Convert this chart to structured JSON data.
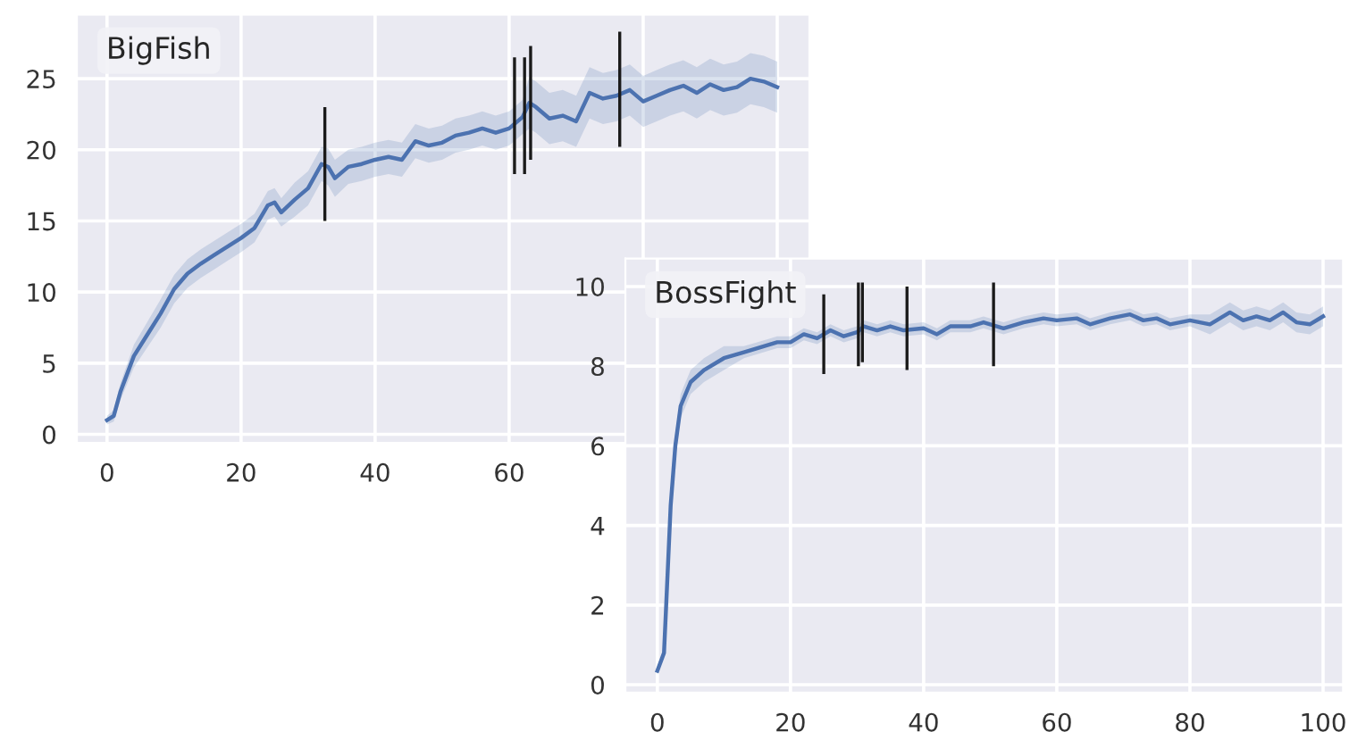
{
  "chart_data": [
    {
      "type": "line",
      "title": "BigFish",
      "grid": true,
      "xlim": [
        -4.5,
        104.8
      ],
      "ylim": [
        -0.6,
        29.5
      ],
      "xticks": [
        0,
        20,
        40,
        60,
        {
          "value": 80,
          "label": null
        },
        {
          "value": 100,
          "label": null
        }
      ],
      "yticks": [
        0,
        5,
        10,
        15,
        20,
        25
      ],
      "series": [
        {
          "color": "#4c72b0",
          "x": [
            0,
            1,
            2,
            4,
            6,
            8,
            10,
            12,
            14,
            16,
            18,
            20,
            22,
            24,
            25,
            26,
            28,
            30,
            32,
            33,
            34,
            36,
            38,
            40,
            42,
            44,
            46,
            48,
            50,
            52,
            54,
            56,
            58,
            60,
            62,
            63,
            64,
            66,
            68,
            70,
            72,
            74,
            76,
            78,
            80,
            82,
            84,
            86,
            88,
            90,
            92,
            94,
            96,
            98,
            100
          ],
          "values": [
            1,
            1.3,
            3,
            5.5,
            7,
            8.5,
            10.2,
            11.3,
            12,
            12.6,
            13.2,
            13.8,
            14.5,
            16.1,
            16.3,
            15.6,
            16.5,
            17.3,
            19,
            18.8,
            18,
            18.8,
            19,
            19.3,
            19.5,
            19.3,
            20.6,
            20.3,
            20.5,
            21,
            21.2,
            21.5,
            21.2,
            21.5,
            22.3,
            23.3,
            23,
            22.2,
            22.4,
            22,
            24,
            23.6,
            23.8,
            24.2,
            23.4,
            23.8,
            24.2,
            24.5,
            24,
            24.6,
            24.2,
            24.4,
            25,
            24.8,
            24.4
          ],
          "lower": [
            0.7,
            0.9,
            2.4,
            4.7,
            6.1,
            7.5,
            9.2,
            10.3,
            11,
            11.6,
            12.2,
            12.8,
            13.5,
            15.1,
            15.3,
            14.6,
            15.3,
            16.1,
            17.8,
            17.5,
            16.7,
            17.6,
            17.8,
            18.1,
            18.3,
            18.1,
            19.4,
            19.1,
            19.3,
            19.8,
            20,
            20.3,
            20,
            20.3,
            21.1,
            21.5,
            21.2,
            20.4,
            20.6,
            20.2,
            22.2,
            21.8,
            22,
            22.4,
            21.6,
            22,
            22.4,
            22.7,
            22.2,
            22.8,
            22.4,
            22.6,
            23.2,
            23,
            22.6
          ],
          "upper": [
            1.3,
            1.7,
            3.6,
            6.3,
            7.9,
            9.5,
            11.2,
            12.3,
            13,
            13.6,
            14.2,
            14.8,
            15.5,
            17.1,
            17.3,
            16.6,
            17.7,
            18.5,
            20.2,
            20.1,
            19.3,
            20,
            20.2,
            20.5,
            20.7,
            20.5,
            21.8,
            21.5,
            21.7,
            22.2,
            22.4,
            22.7,
            22.4,
            22.7,
            23.5,
            25.1,
            24.8,
            24,
            24.2,
            23.8,
            25.8,
            25.4,
            25.6,
            26,
            25.2,
            25.6,
            26,
            26.3,
            25.8,
            26.4,
            26,
            26.2,
            26.8,
            26.6,
            26.2
          ]
        },
        {
          "type": "bar",
          "color": "#1a1a1a",
          "x": [
            32.5,
            60.8,
            62.3,
            63.2,
            76.5
          ],
          "base": [
            15,
            18.3,
            18.3,
            19.3,
            20.2
          ],
          "values": [
            8,
            8.2,
            8.2,
            8,
            8.1
          ]
        }
      ]
    },
    {
      "type": "line",
      "title": "BossFight",
      "grid": true,
      "xlim": [
        -4.8,
        103
      ],
      "ylim": [
        -0.2,
        10.7
      ],
      "xticks": [
        0,
        20,
        40,
        60,
        80,
        100
      ],
      "yticks": [
        0,
        2,
        4,
        6,
        8,
        10
      ],
      "series": [
        {
          "color": "#4c72b0",
          "x": [
            0,
            1,
            1.3,
            2,
            2.7,
            3.5,
            5,
            7,
            10,
            13,
            16,
            18,
            20,
            22,
            24,
            26,
            28,
            30,
            31,
            33,
            35,
            37,
            40,
            42,
            44,
            47,
            49,
            52,
            55,
            58,
            60,
            63,
            65,
            68,
            71,
            73,
            75,
            77,
            80,
            83,
            86,
            88,
            90,
            92,
            94,
            96,
            98,
            100
          ],
          "values": [
            0.35,
            0.8,
            1.9,
            4.5,
            6,
            7,
            7.6,
            7.9,
            8.2,
            8.35,
            8.5,
            8.6,
            8.6,
            8.8,
            8.7,
            8.9,
            8.75,
            8.85,
            9,
            8.9,
            9,
            8.9,
            8.95,
            8.8,
            9,
            9,
            9.1,
            8.95,
            9.1,
            9.2,
            9.15,
            9.2,
            9.05,
            9.2,
            9.3,
            9.15,
            9.2,
            9.05,
            9.15,
            9.05,
            9.35,
            9.15,
            9.25,
            9.15,
            9.35,
            9.1,
            9.05,
            9.25
          ],
          "lower": [
            0.25,
            0.7,
            1.8,
            4.4,
            5.7,
            6.7,
            7.3,
            7.6,
            7.9,
            8.2,
            8.35,
            8.45,
            8.45,
            8.65,
            8.55,
            8.75,
            8.6,
            8.7,
            8.85,
            8.75,
            8.85,
            8.75,
            8.8,
            8.65,
            8.85,
            8.85,
            8.95,
            8.8,
            8.95,
            9.05,
            9,
            9.05,
            8.9,
            9.05,
            9.15,
            9,
            9.05,
            8.9,
            9,
            8.8,
            9.1,
            8.9,
            9,
            8.9,
            9.1,
            8.85,
            8.8,
            9
          ],
          "upper": [
            0.45,
            0.9,
            2,
            4.6,
            6.3,
            7.3,
            7.9,
            8.2,
            8.5,
            8.5,
            8.65,
            8.75,
            8.75,
            8.95,
            8.85,
            9.05,
            8.9,
            9,
            9.15,
            9.05,
            9.15,
            9.05,
            9.1,
            8.95,
            9.15,
            9.15,
            9.25,
            9.1,
            9.25,
            9.35,
            9.3,
            9.35,
            9.2,
            9.35,
            9.45,
            9.3,
            9.35,
            9.2,
            9.3,
            9.3,
            9.6,
            9.4,
            9.5,
            9.4,
            9.6,
            9.35,
            9.3,
            9.5
          ]
        },
        {
          "type": "bar",
          "color": "#1a1a1a",
          "x": [
            25,
            30.2,
            30.8,
            37.5,
            50.5
          ],
          "base": [
            7.8,
            8,
            8.1,
            7.9,
            8
          ],
          "values": [
            2,
            2.1,
            2,
            2.1,
            2.1
          ]
        }
      ]
    }
  ]
}
